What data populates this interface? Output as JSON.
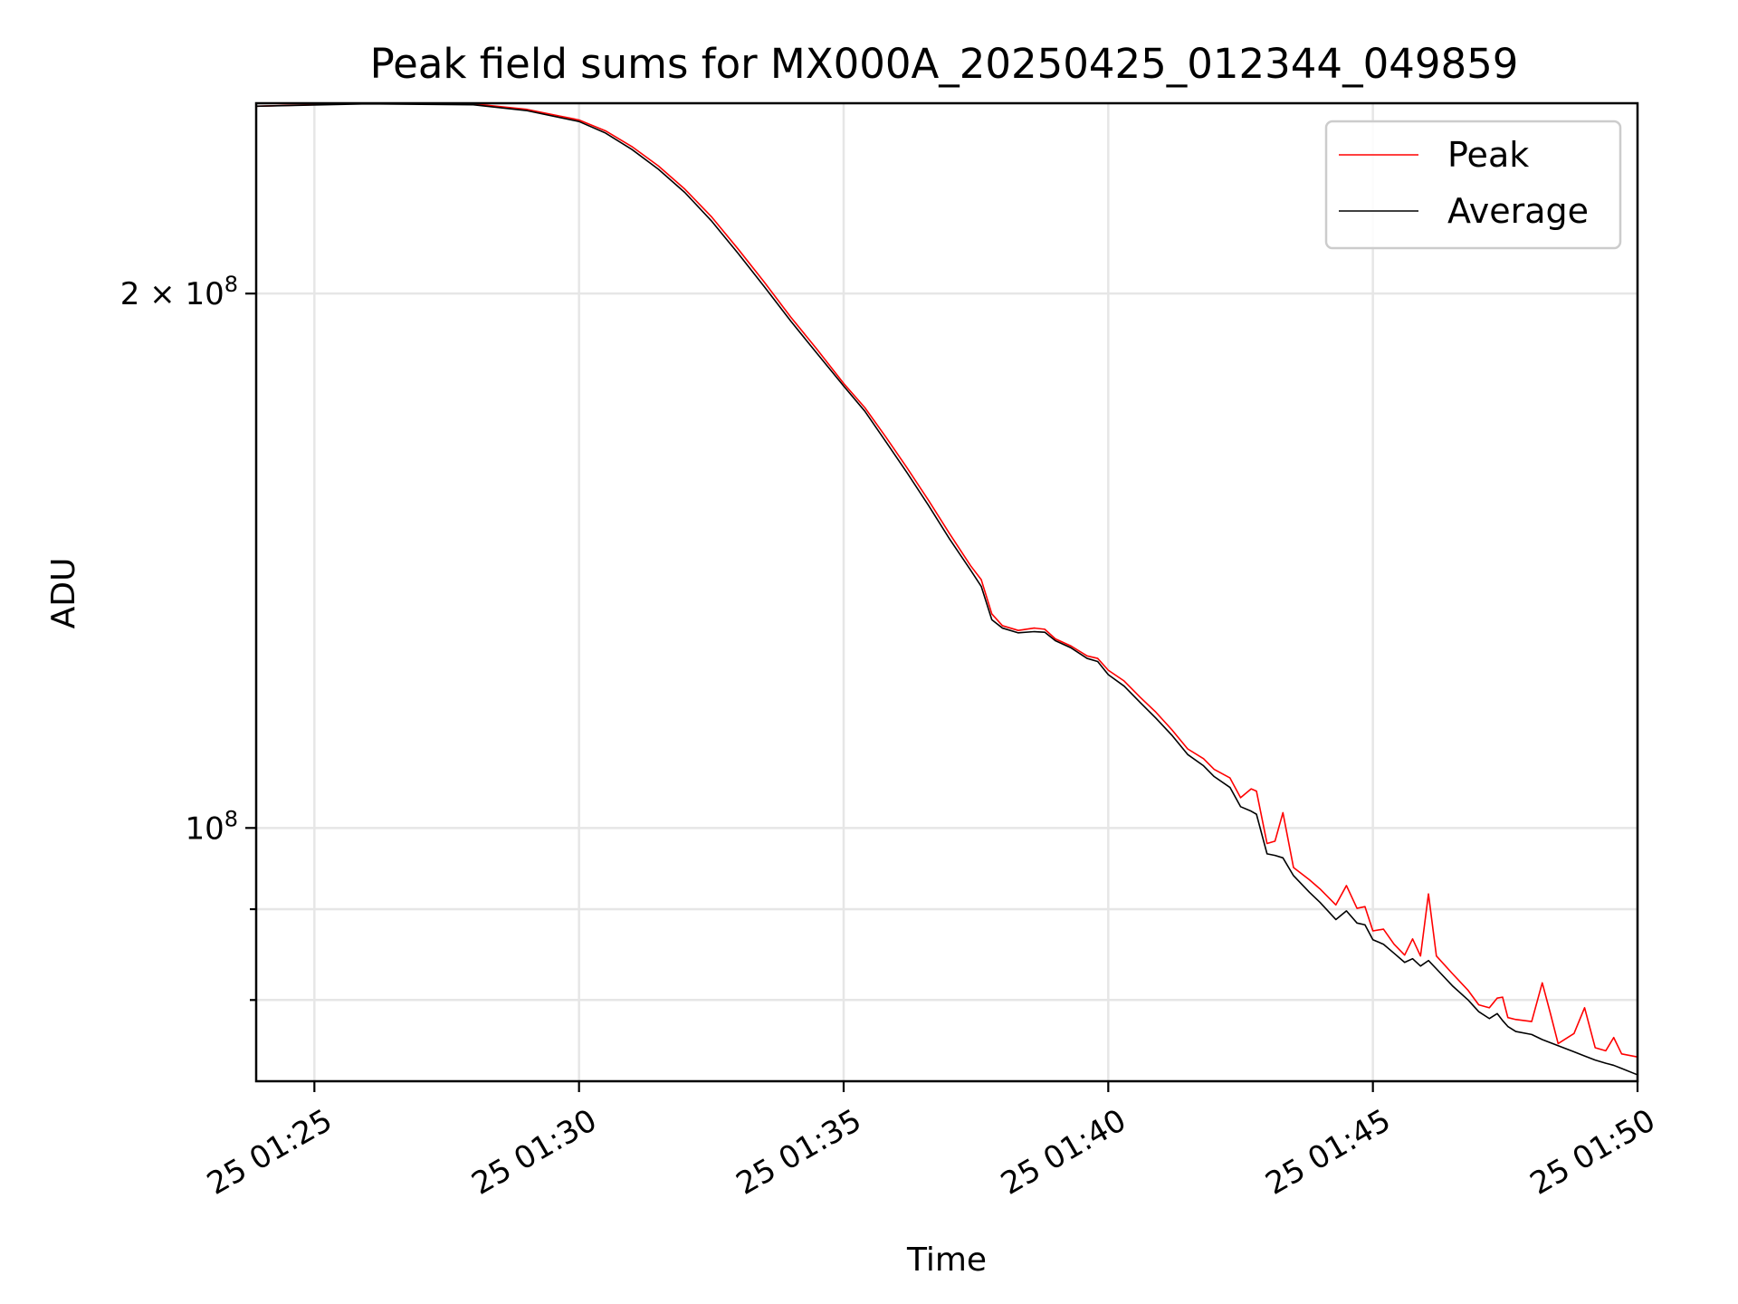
{
  "chart_data": {
    "type": "line",
    "title": "Peak field sums for MX000A_20250425_012344_049859",
    "xlabel": "Time",
    "ylabel": "ADU",
    "x_axis": {
      "kind": "time",
      "unit": "minutes past 01:00 on day 25",
      "range": [
        23.9,
        50.0
      ],
      "ticks": [
        {
          "value": 25,
          "label": "25 01:25"
        },
        {
          "value": 30,
          "label": "25 01:30"
        },
        {
          "value": 35,
          "label": "25 01:35"
        },
        {
          "value": 40,
          "label": "25 01:40"
        },
        {
          "value": 45,
          "label": "25 01:45"
        },
        {
          "value": 50,
          "label": "25 01:50"
        }
      ]
    },
    "y_axis": {
      "scale": "log",
      "range": [
        72000000,
        256000000
      ],
      "major_ticks": [
        {
          "value": 100000000,
          "base": "10",
          "exp": "8"
        },
        {
          "value": 200000000,
          "base": "2 × 10",
          "exp": "8"
        }
      ],
      "minor_ticks": [
        80000000,
        90000000
      ]
    },
    "grid": true,
    "legend": {
      "position": "upper right"
    },
    "series": [
      {
        "name": "Peak",
        "color": "#ff0000",
        "points": [
          [
            23.9,
            255000000
          ],
          [
            26.0,
            256000000
          ],
          [
            28.0,
            255800000
          ],
          [
            29.0,
            254000000
          ],
          [
            30.0,
            250500000
          ],
          [
            30.5,
            247000000
          ],
          [
            31.0,
            242000000
          ],
          [
            31.5,
            236000000
          ],
          [
            32.0,
            229000000
          ],
          [
            32.5,
            221000000
          ],
          [
            33.0,
            212000000
          ],
          [
            33.5,
            203000000
          ],
          [
            34.0,
            194000000
          ],
          [
            34.5,
            186000000
          ],
          [
            35.0,
            178000000
          ],
          [
            35.4,
            172500000
          ],
          [
            35.8,
            166000000
          ],
          [
            36.2,
            159500000
          ],
          [
            36.6,
            153000000
          ],
          [
            37.0,
            146500000
          ],
          [
            37.4,
            140500000
          ],
          [
            37.6,
            138000000
          ],
          [
            37.8,
            132000000
          ],
          [
            38.0,
            130000000
          ],
          [
            38.3,
            129200000
          ],
          [
            38.6,
            129600000
          ],
          [
            38.8,
            129400000
          ],
          [
            39.0,
            127800000
          ],
          [
            39.3,
            126600000
          ],
          [
            39.6,
            125000000
          ],
          [
            39.8,
            124600000
          ],
          [
            40.0,
            122700000
          ],
          [
            40.3,
            121000000
          ],
          [
            40.6,
            118500000
          ],
          [
            40.9,
            116200000
          ],
          [
            41.2,
            113600000
          ],
          [
            41.5,
            110800000
          ],
          [
            41.8,
            109400000
          ],
          [
            42.0,
            107900000
          ],
          [
            42.3,
            106700000
          ],
          [
            42.5,
            104000000
          ],
          [
            42.7,
            105200000
          ],
          [
            42.8,
            104900000
          ],
          [
            43.0,
            98000000
          ],
          [
            43.15,
            98300000
          ],
          [
            43.3,
            102000000
          ],
          [
            43.5,
            95000000
          ],
          [
            43.8,
            93500000
          ],
          [
            44.0,
            92400000
          ],
          [
            44.3,
            90500000
          ],
          [
            44.5,
            92800000
          ],
          [
            44.7,
            90100000
          ],
          [
            44.85,
            90300000
          ],
          [
            45.0,
            87500000
          ],
          [
            45.2,
            87700000
          ],
          [
            45.4,
            86000000
          ],
          [
            45.6,
            84800000
          ],
          [
            45.75,
            86600000
          ],
          [
            45.9,
            84700000
          ],
          [
            46.05,
            91800000
          ],
          [
            46.2,
            84700000
          ],
          [
            46.5,
            82800000
          ],
          [
            46.8,
            81000000
          ],
          [
            47.0,
            79500000
          ],
          [
            47.2,
            79200000
          ],
          [
            47.35,
            80200000
          ],
          [
            47.45,
            80300000
          ],
          [
            47.55,
            78200000
          ],
          [
            47.7,
            78000000
          ],
          [
            48.0,
            77800000
          ],
          [
            48.2,
            81800000
          ],
          [
            48.35,
            78700000
          ],
          [
            48.5,
            75600000
          ],
          [
            48.8,
            76600000
          ],
          [
            49.0,
            79200000
          ],
          [
            49.2,
            75200000
          ],
          [
            49.4,
            74900000
          ],
          [
            49.55,
            76200000
          ],
          [
            49.7,
            74600000
          ],
          [
            50.0,
            74300000
          ]
        ]
      },
      {
        "name": "Average",
        "color": "#000000",
        "points": [
          [
            23.9,
            255000000
          ],
          [
            26.0,
            255800000
          ],
          [
            28.0,
            255500000
          ],
          [
            29.0,
            253600000
          ],
          [
            30.0,
            250000000
          ],
          [
            30.5,
            246300000
          ],
          [
            31.0,
            241100000
          ],
          [
            31.5,
            235000000
          ],
          [
            32.0,
            228000000
          ],
          [
            32.5,
            219800000
          ],
          [
            33.0,
            210800000
          ],
          [
            33.5,
            201800000
          ],
          [
            34.0,
            193000000
          ],
          [
            34.5,
            185000000
          ],
          [
            35.0,
            177400000
          ],
          [
            35.4,
            171700000
          ],
          [
            35.8,
            165000000
          ],
          [
            36.2,
            158500000
          ],
          [
            36.6,
            152000000
          ],
          [
            37.0,
            145500000
          ],
          [
            37.4,
            139700000
          ],
          [
            37.6,
            136800000
          ],
          [
            37.8,
            131000000
          ],
          [
            38.0,
            129600000
          ],
          [
            38.3,
            128800000
          ],
          [
            38.6,
            129000000
          ],
          [
            38.8,
            128900000
          ],
          [
            39.0,
            127500000
          ],
          [
            39.3,
            126300000
          ],
          [
            39.6,
            124600000
          ],
          [
            39.8,
            124100000
          ],
          [
            40.0,
            122000000
          ],
          [
            40.3,
            120200000
          ],
          [
            40.6,
            117700000
          ],
          [
            40.9,
            115300000
          ],
          [
            41.2,
            112800000
          ],
          [
            41.5,
            110000000
          ],
          [
            41.8,
            108400000
          ],
          [
            42.0,
            106900000
          ],
          [
            42.3,
            105400000
          ],
          [
            42.5,
            102800000
          ],
          [
            42.7,
            102200000
          ],
          [
            42.8,
            101800000
          ],
          [
            43.0,
            96700000
          ],
          [
            43.15,
            96500000
          ],
          [
            43.3,
            96200000
          ],
          [
            43.5,
            94000000
          ],
          [
            43.8,
            92000000
          ],
          [
            44.0,
            90800000
          ],
          [
            44.3,
            88800000
          ],
          [
            44.5,
            89800000
          ],
          [
            44.7,
            88400000
          ],
          [
            44.85,
            88200000
          ],
          [
            45.0,
            86500000
          ],
          [
            45.2,
            86000000
          ],
          [
            45.4,
            85000000
          ],
          [
            45.6,
            84000000
          ],
          [
            45.75,
            84400000
          ],
          [
            45.9,
            83600000
          ],
          [
            46.05,
            84200000
          ],
          [
            46.2,
            83300000
          ],
          [
            46.5,
            81500000
          ],
          [
            46.8,
            80000000
          ],
          [
            47.0,
            78800000
          ],
          [
            47.2,
            78100000
          ],
          [
            47.35,
            78600000
          ],
          [
            47.45,
            77900000
          ],
          [
            47.55,
            77300000
          ],
          [
            47.7,
            76800000
          ],
          [
            48.0,
            76500000
          ],
          [
            48.2,
            76000000
          ],
          [
            48.35,
            75700000
          ],
          [
            48.5,
            75400000
          ],
          [
            48.8,
            74800000
          ],
          [
            49.0,
            74400000
          ],
          [
            49.2,
            74000000
          ],
          [
            49.4,
            73700000
          ],
          [
            49.55,
            73500000
          ],
          [
            49.7,
            73200000
          ],
          [
            50.0,
            72600000
          ]
        ]
      }
    ]
  }
}
